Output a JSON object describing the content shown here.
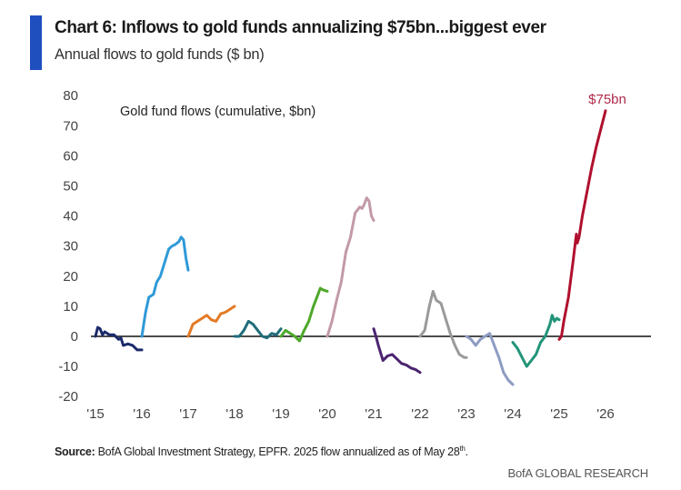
{
  "header": {
    "title": "Chart 6: Inflows to gold funds annualizing $75bn...biggest ever",
    "subtitle": "Annual flows to gold funds ($ bn)",
    "accent_color": "#1f4fbf"
  },
  "footer": {
    "source_label": "Source:",
    "source_text": " BofA Global Investment Strategy, EPFR. 2025 flow annualized as of May 28",
    "source_sup": "th",
    "source_end": ".",
    "brand": "BofA GLOBAL RESEARCH"
  },
  "chart_data": {
    "type": "line",
    "title": "Chart 6: Inflows to gold funds annualizing $75bn...biggest ever",
    "subtitle": "Annual flows to gold funds ($ bn)",
    "inner_label": "Gold fund flows (cumulative, $bn)",
    "xlabel": "",
    "ylabel": "",
    "ylim": [
      -20,
      80
    ],
    "yticks": [
      80,
      70,
      60,
      50,
      40,
      30,
      20,
      10,
      0,
      -10,
      -20
    ],
    "ytick_labels": [
      "80",
      "70",
      "60",
      "50",
      "40",
      "30",
      "20",
      "10",
      "0",
      "-10",
      "-20"
    ],
    "xlim": [
      2015,
      2026
    ],
    "xticks": [
      2015,
      2016,
      2017,
      2018,
      2019,
      2020,
      2021,
      2022,
      2023,
      2024,
      2025,
      2026
    ],
    "xtick_labels": [
      "'15",
      "'16",
      "'17",
      "'18",
      "'19",
      "'20",
      "'21",
      "'22",
      "'23",
      "'24",
      "'25",
      "'26"
    ],
    "grid": false,
    "zero_line": true,
    "annotation": {
      "text": "$75bn",
      "series": "2025",
      "value": 75
    },
    "series_note": "Each series is cumulative flow within the calendar year; t is fraction of year elapsed",
    "series": [
      {
        "name": "2015",
        "color": "#1b2a6b",
        "t": [
          0,
          0.05,
          0.1,
          0.15,
          0.2,
          0.3,
          0.4,
          0.5,
          0.55,
          0.6,
          0.7,
          0.8,
          0.9,
          1.0
        ],
        "values": [
          0,
          3,
          2.5,
          0.5,
          1.5,
          0.5,
          0.5,
          -1,
          -0.5,
          -3,
          -2.5,
          -3,
          -4.5,
          -4.5
        ]
      },
      {
        "name": "2016",
        "color": "#2f9ad8",
        "t": [
          0,
          0.08,
          0.15,
          0.25,
          0.32,
          0.4,
          0.5,
          0.58,
          0.65,
          0.72,
          0.8,
          0.85,
          0.9,
          0.95,
          1.0
        ],
        "values": [
          0,
          8,
          13,
          14,
          18,
          20,
          25,
          29,
          30,
          30.5,
          31.5,
          33,
          32,
          26,
          22
        ]
      },
      {
        "name": "2017",
        "color": "#e37a25",
        "t": [
          0,
          0.1,
          0.2,
          0.3,
          0.4,
          0.5,
          0.6,
          0.7,
          0.8,
          0.9,
          1.0
        ],
        "values": [
          0,
          4,
          5,
          6,
          7,
          5.5,
          5,
          7.5,
          8,
          9,
          10
        ]
      },
      {
        "name": "2018",
        "color": "#1f6d7a",
        "t": [
          0,
          0.1,
          0.2,
          0.3,
          0.4,
          0.5,
          0.6,
          0.7,
          0.8,
          0.9,
          1.0
        ],
        "values": [
          0,
          0,
          2,
          5,
          4,
          2,
          0,
          -0.5,
          1,
          0.5,
          2.5
        ]
      },
      {
        "name": "2019",
        "color": "#4ea82a",
        "t": [
          0,
          0.1,
          0.2,
          0.3,
          0.4,
          0.5,
          0.6,
          0.7,
          0.8,
          0.85,
          0.9,
          1.0
        ],
        "values": [
          0,
          2,
          1,
          0,
          -1.5,
          2,
          5,
          10,
          14,
          16,
          15.5,
          15
        ]
      },
      {
        "name": "2020",
        "color": "#c29aa8",
        "t": [
          0,
          0.1,
          0.2,
          0.3,
          0.4,
          0.5,
          0.6,
          0.7,
          0.75,
          0.8,
          0.85,
          0.9,
          0.95,
          1.0
        ],
        "values": [
          0,
          5,
          12,
          18,
          28,
          33,
          41,
          43,
          42.5,
          44,
          46,
          45,
          40,
          38.5
        ]
      },
      {
        "name": "2021",
        "color": "#4b2470",
        "t": [
          0,
          0.05,
          0.1,
          0.2,
          0.3,
          0.4,
          0.5,
          0.6,
          0.7,
          0.8,
          0.9,
          1.0
        ],
        "values": [
          2.5,
          0,
          -3,
          -8,
          -6.5,
          -6,
          -7.5,
          -9,
          -9.5,
          -10.5,
          -11,
          -12
        ]
      },
      {
        "name": "2022",
        "color": "#9a9a9a",
        "t": [
          0,
          0.1,
          0.2,
          0.28,
          0.35,
          0.45,
          0.55,
          0.65,
          0.75,
          0.85,
          0.95,
          1.0
        ],
        "values": [
          0,
          2,
          10,
          15,
          12,
          11,
          6,
          1,
          -3,
          -6,
          -7,
          -7
        ]
      },
      {
        "name": "2023",
        "color": "#8e9cc2",
        "t": [
          0,
          0.1,
          0.2,
          0.3,
          0.4,
          0.5,
          0.6,
          0.7,
          0.8,
          0.9,
          1.0
        ],
        "values": [
          0,
          -1,
          -3,
          -1,
          0,
          1,
          -3,
          -7,
          -12,
          -14.5,
          -16
        ]
      },
      {
        "name": "2024",
        "color": "#229478",
        "t": [
          0,
          0.1,
          0.2,
          0.3,
          0.4,
          0.5,
          0.6,
          0.7,
          0.8,
          0.85,
          0.9,
          0.95,
          1.0
        ],
        "values": [
          -2,
          -4,
          -7,
          -10,
          -8,
          -6,
          -2,
          0,
          4,
          7,
          5,
          6,
          5.5
        ]
      },
      {
        "name": "2025",
        "color": "#b0102e",
        "t": [
          0,
          0.05,
          0.1,
          0.2,
          0.3,
          0.37,
          0.39,
          0.43,
          0.5,
          0.6,
          0.7,
          0.8,
          0.9,
          1.0
        ],
        "values": [
          -1,
          0,
          5,
          13,
          25,
          34,
          31,
          33,
          40,
          48,
          56,
          63,
          69,
          75
        ]
      }
    ]
  }
}
